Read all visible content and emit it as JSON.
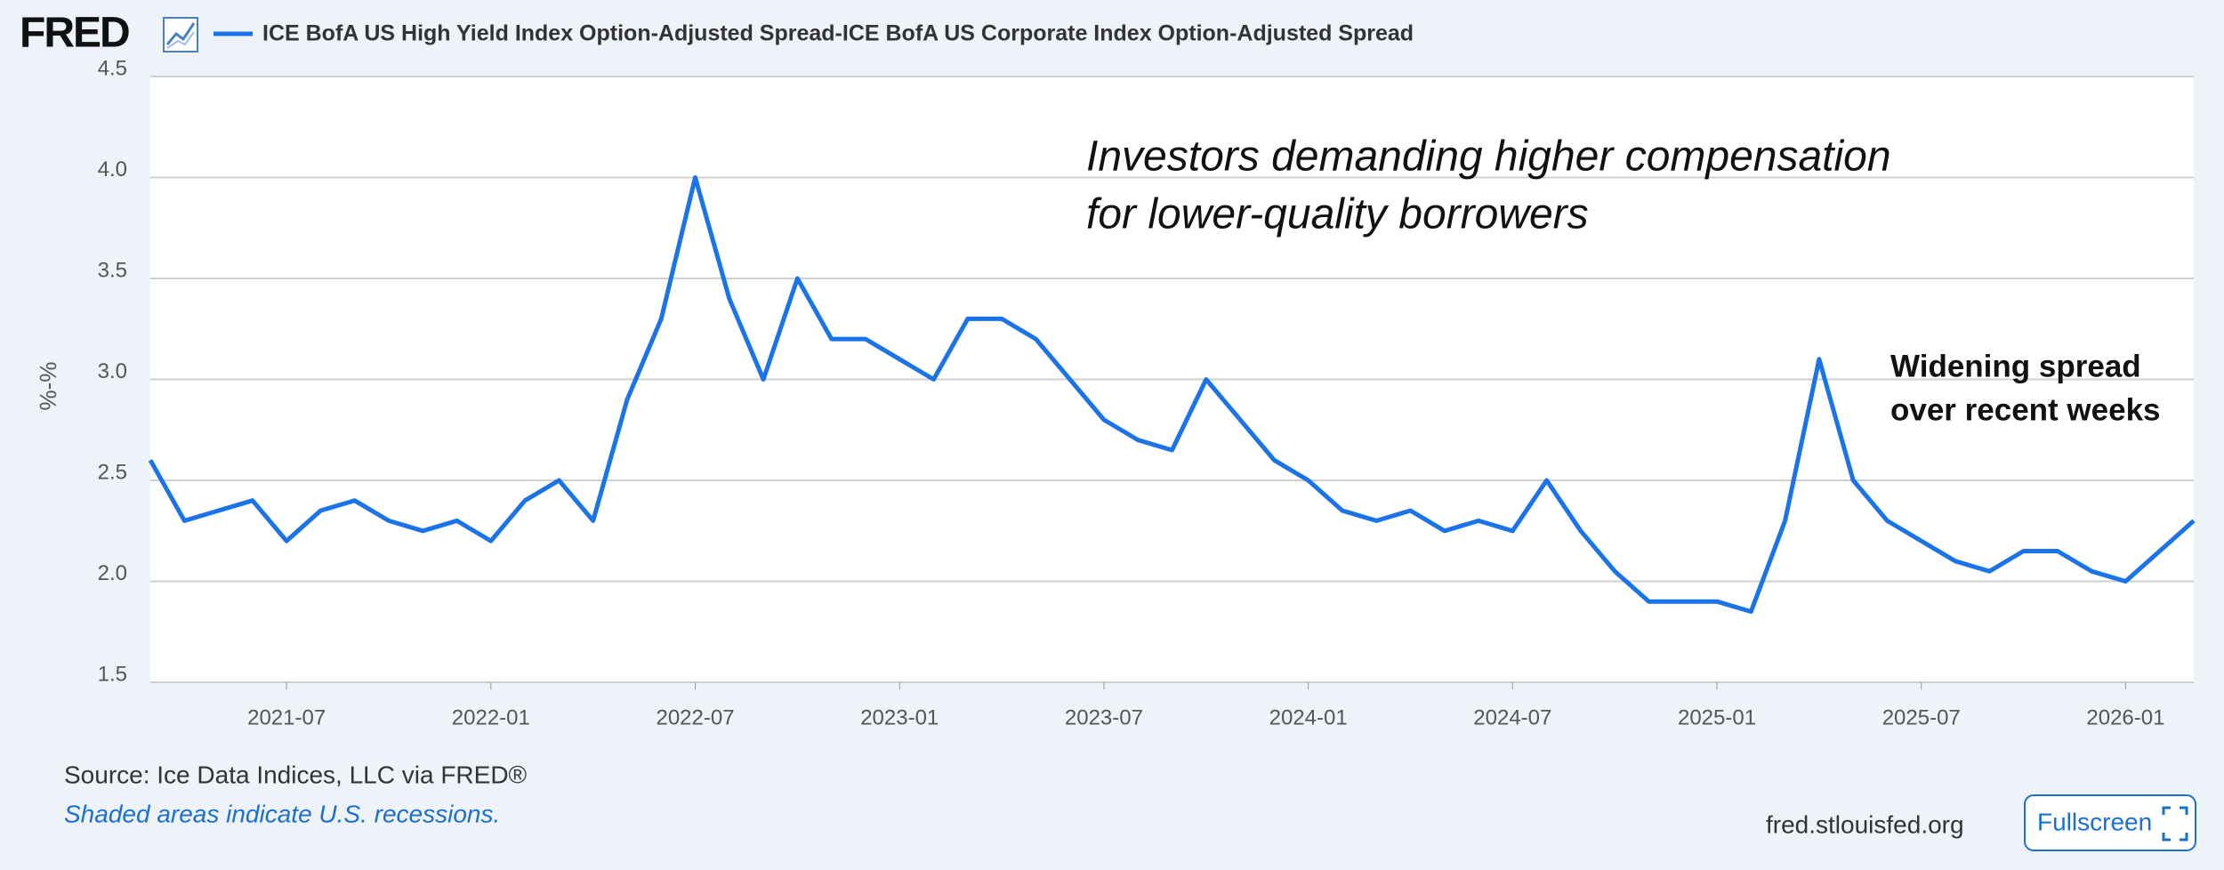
{
  "brand": "FRED",
  "chart_data": {
    "type": "line",
    "y_label": "%-%",
    "x": [
      "2021-03",
      "2021-04",
      "2021-05",
      "2021-06",
      "2021-07",
      "2021-08",
      "2021-09",
      "2021-10",
      "2021-11",
      "2021-12",
      "2022-01",
      "2022-02",
      "2022-03",
      "2022-04",
      "2022-05",
      "2022-06",
      "2022-07",
      "2022-08",
      "2022-09",
      "2022-10",
      "2022-11",
      "2022-12",
      "2023-01",
      "2023-02",
      "2023-03",
      "2023-04",
      "2023-05",
      "2023-06",
      "2023-07",
      "2023-08",
      "2023-09",
      "2023-10",
      "2023-11",
      "2023-12",
      "2024-01",
      "2024-02",
      "2024-03",
      "2024-04",
      "2024-05",
      "2024-06",
      "2024-07",
      "2024-08",
      "2024-09",
      "2024-10",
      "2024-11",
      "2024-12",
      "2025-01",
      "2025-02",
      "2025-03",
      "2025-04",
      "2025-05",
      "2025-06",
      "2025-07",
      "2025-08",
      "2025-09",
      "2025-10",
      "2025-11",
      "2025-12",
      "2026-01",
      "2026-02",
      "2026-03"
    ],
    "series": [
      {
        "name": "ICE BofA US High Yield Index Option-Adjusted Spread-ICE BofA US Corporate Index Option-Adjusted Spread",
        "color": "#1a73e8",
        "values": [
          2.6,
          2.3,
          2.35,
          2.4,
          2.2,
          2.35,
          2.4,
          2.3,
          2.25,
          2.3,
          2.2,
          2.4,
          2.5,
          2.3,
          2.9,
          3.3,
          4.0,
          3.4,
          3.0,
          3.5,
          3.2,
          3.2,
          3.1,
          3.0,
          3.3,
          3.3,
          3.2,
          3.0,
          2.8,
          2.7,
          2.65,
          3.0,
          2.8,
          2.6,
          2.5,
          2.35,
          2.3,
          2.35,
          2.25,
          2.3,
          2.25,
          2.5,
          2.25,
          2.05,
          1.9,
          1.9,
          1.9,
          1.85,
          2.3,
          3.1,
          2.5,
          2.3,
          2.2,
          2.1,
          2.05,
          2.15,
          2.15,
          2.05,
          2.0,
          2.15,
          2.3
        ]
      }
    ],
    "xlim": [
      "2021-03",
      "2026-03"
    ],
    "xticks": [
      "2021-07",
      "2022-01",
      "2022-07",
      "2023-01",
      "2023-07",
      "2024-01",
      "2024-07",
      "2025-01",
      "2025-07",
      "2026-01"
    ],
    "ylim": [
      1.5,
      4.5
    ],
    "yticks": [
      1.5,
      {
        "value": 2,
        "label": "2.0"
      },
      2.5,
      {
        "value": 3,
        "label": "3.0"
      },
      3.5,
      {
        "value": 4,
        "label": "4.0"
      },
      4.5
    ],
    "grid": true,
    "annotations": [
      "Investors demanding higher compensation",
      "for lower-quality borrowers",
      "Widening spread",
      "over recent weeks"
    ]
  },
  "footer": {
    "source": "Source: Ice Data Indices, LLC via FRED®",
    "note": "Shaded areas indicate U.S. recessions.",
    "site": "fred.stlouisfed.org",
    "button": "Fullscreen"
  }
}
